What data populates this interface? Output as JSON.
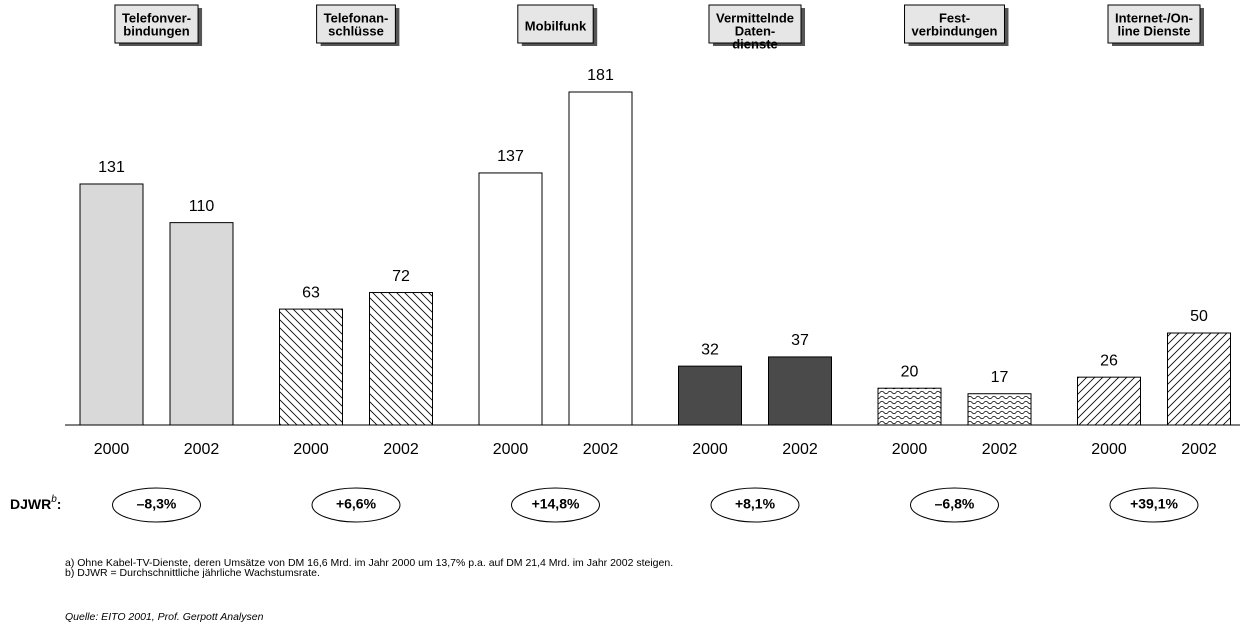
{
  "chart_data": {
    "type": "bar",
    "groups": [
      {
        "title": [
          "Telefonver-",
          "bindungen"
        ],
        "categories": [
          "2000",
          "2002"
        ],
        "values": [
          131,
          110
        ],
        "fill": "#d9d9d9",
        "growth_label": "–8,3%"
      },
      {
        "title": [
          "Telefonan-",
          "schlüsse"
        ],
        "categories": [
          "2000",
          "2002"
        ],
        "values": [
          63,
          72
        ],
        "fill": "hatch-back",
        "growth_label": "+6,6%"
      },
      {
        "title": [
          "Mobilfunk"
        ],
        "categories": [
          "2000",
          "2002"
        ],
        "values": [
          137,
          181
        ],
        "fill": "#ffffff",
        "growth_label": "+14,8%"
      },
      {
        "title": [
          "Vermittelnde",
          "Daten-",
          "dienste"
        ],
        "categories": [
          "2000",
          "2002"
        ],
        "values": [
          32,
          37
        ],
        "fill": "#4a4a4a",
        "growth_label": "+8,1%"
      },
      {
        "title": [
          "Fest-",
          "verbindungen"
        ],
        "categories": [
          "2000",
          "2002"
        ],
        "values": [
          20,
          17
        ],
        "fill": "wave",
        "growth_label": "–6,8%"
      },
      {
        "title": [
          "Internet-/On-",
          "line Dienste"
        ],
        "categories": [
          "2000",
          "2002"
        ],
        "values": [
          26,
          50
        ],
        "fill": "hatch-fwd",
        "growth_label": "+39,1%"
      }
    ],
    "growth_caption": {
      "label": "DJWR",
      "sup": "b",
      "suffix": ":"
    },
    "footnotes": [
      "a) Ohne Kabel-TV-Dienste, deren Umsätze von DM 16,6 Mrd. im Jahr 2000 um 13,7% p.a. auf DM 21,4 Mrd. im Jahr 2002 steigen.",
      "b) DJWR = Durchschnittliche jährliche Wachstumsrate."
    ],
    "source": "Quelle: EITO 2001, Prof. Gerpott Analysen"
  }
}
